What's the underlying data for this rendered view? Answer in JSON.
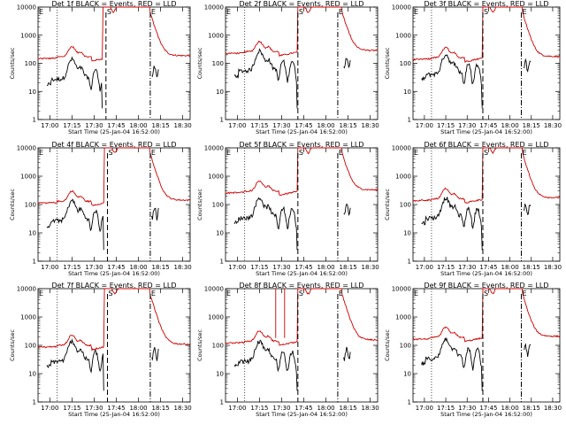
{
  "colors": {
    "events": "#000000",
    "lld": "#cc0000",
    "background": "#ffffff"
  },
  "chart_data": {
    "type": "line",
    "ylim": [
      1,
      10000
    ],
    "yscale": "log",
    "ytick_labels": [
      "1",
      "10",
      "100",
      "1000",
      "10000"
    ],
    "xlim": [
      "16:52",
      "18:35"
    ],
    "xtick_labels": [
      "17:00",
      "17:15",
      "17:30",
      "17:45",
      "18:00",
      "18:15",
      "18:30"
    ],
    "xlabel": "Start Time (25-Jan-04 16:52:00)",
    "ylabel": "Counts/sec",
    "markers": [
      {
        "label": "S",
        "time": "17:39",
        "style": "dashed"
      },
      {
        "label": "E",
        "time": "18:08",
        "style": "dash-dot"
      }
    ],
    "panels": [
      {
        "title": "Det 1f BLACK = Events, RED = LLD",
        "high_start": "17:36",
        "high_end": "18:08",
        "lld_peak": 12000,
        "lld_quiet": 170,
        "events_quiet": 40
      },
      {
        "title": "Det 2f BLACK = Events, RED = LLD",
        "high_start": "17:41",
        "high_end": "18:11",
        "lld_peak": 12000,
        "lld_quiet": 260,
        "events_quiet": 80
      },
      {
        "title": "Det 3f BLACK = Events, RED = LLD",
        "high_start": "17:41",
        "high_end": "18:09",
        "lld_peak": 12000,
        "lld_quiet": 160,
        "events_quiet": 60
      },
      {
        "title": "Det 4f BLACK = Events, RED = LLD",
        "high_start": "17:37",
        "high_end": "18:08",
        "lld_peak": 12000,
        "lld_quiet": 130,
        "events_quiet": 40
      },
      {
        "title": "Det 5f BLACK = Events, RED = LLD",
        "high_start": "17:41",
        "high_end": "18:11",
        "lld_peak": 12000,
        "lld_quiet": 300,
        "events_quiet": 50
      },
      {
        "title": "Det 6f BLACK = Events, RED = LLD",
        "high_start": "17:41",
        "high_end": "18:09",
        "lld_peak": 12000,
        "lld_quiet": 160,
        "events_quiet": 50
      },
      {
        "title": "Det 7f BLACK = Events, RED = LLD",
        "high_start": "17:37",
        "high_end": "18:08",
        "lld_peak": 12000,
        "lld_quiet": 100,
        "events_quiet": 40
      },
      {
        "title": "Det 8f BLACK = Events, RED = LLD",
        "high_start": "17:41",
        "high_end": "18:11",
        "lld_peak": 12000,
        "lld_quiet": 140,
        "events_quiet": 40
      },
      {
        "title": "Det 9f BLACK = Events, RED = LLD",
        "high_start": "17:41",
        "high_end": "18:09",
        "lld_peak": 12000,
        "lld_quiet": 190,
        "events_quiet": 50
      }
    ]
  }
}
